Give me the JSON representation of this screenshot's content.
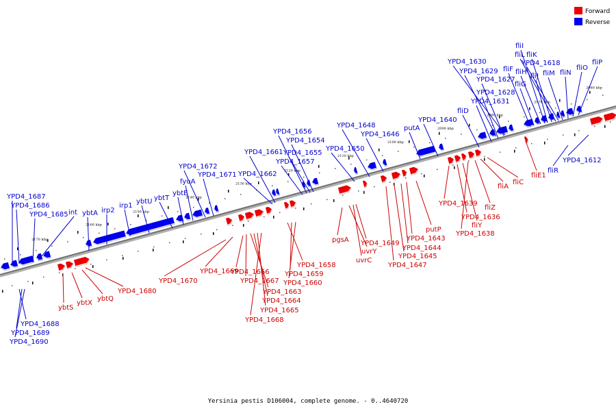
{
  "legend": [
    {
      "label": "Forward",
      "color": "#ee0000"
    },
    {
      "label": "Reverse",
      "color": "#0000ee"
    }
  ],
  "caption": "Yersinia pestis D106004, complete genome. - 0..4640720",
  "colors": {
    "forward": "#ee0000",
    "reverse": "#0000ee",
    "backbone": "#808080"
  },
  "ticks": [
    "2060 kbp",
    "2070 kbp",
    "2080 kbp",
    "2090 kbp",
    "2100 kbp",
    "2110 kbp",
    "2120 kbp",
    "2130 kbp",
    "2140 kbp",
    "2150 kbp",
    "2160 kbp",
    "2170 kbp"
  ],
  "reverse_genes": [
    {
      "name": "YPD4_1687"
    },
    {
      "name": "YPD4_1686"
    },
    {
      "name": "YPD4_1685"
    },
    {
      "name": "int"
    },
    {
      "name": "ybtA"
    },
    {
      "name": "irp2"
    },
    {
      "name": "irp1"
    },
    {
      "name": "ybtU"
    },
    {
      "name": "ybtT"
    },
    {
      "name": "ybtE"
    },
    {
      "name": "fyuA"
    },
    {
      "name": "YPD4_1672"
    },
    {
      "name": "YPD4_1671"
    },
    {
      "name": "YPD4_1662"
    },
    {
      "name": "YPD4_1661"
    },
    {
      "name": "YPD4_1657"
    },
    {
      "name": "YPD4_1656"
    },
    {
      "name": "YPD4_1655"
    },
    {
      "name": "YPD4_1654"
    },
    {
      "name": "YPD4_1650"
    },
    {
      "name": "YPD4_1648"
    },
    {
      "name": "YPD4_1646"
    },
    {
      "name": "putA"
    },
    {
      "name": "YPD4_1640"
    },
    {
      "name": "fliD"
    },
    {
      "name": "YPD4_1631"
    },
    {
      "name": "YPD4_1628"
    },
    {
      "name": "YPD4_1627"
    },
    {
      "name": "YPD4_1629"
    },
    {
      "name": "YPD4_1630"
    },
    {
      "name": "fliF"
    },
    {
      "name": "fliG"
    },
    {
      "name": "fliH"
    },
    {
      "name": "fliI"
    },
    {
      "name": "fliJ"
    },
    {
      "name": "fliK"
    },
    {
      "name": "fliL"
    },
    {
      "name": "YPD4_1618"
    },
    {
      "name": "fliM"
    },
    {
      "name": "fliN"
    },
    {
      "name": "fliO"
    },
    {
      "name": "fliP"
    },
    {
      "name": "fliR"
    },
    {
      "name": "YPD4_1612"
    },
    {
      "name": "YPD4_1688"
    },
    {
      "name": "YPD4_1689"
    },
    {
      "name": "YPD4_1690"
    }
  ],
  "forward_genes": [
    {
      "name": "ybtS"
    },
    {
      "name": "ybtX"
    },
    {
      "name": "ybtQ"
    },
    {
      "name": "YPD4_1680"
    },
    {
      "name": "YPD4_1670"
    },
    {
      "name": "YPD4_1669"
    },
    {
      "name": "YPD4_1666"
    },
    {
      "name": "YPD4_1667"
    },
    {
      "name": "YPD4_1663"
    },
    {
      "name": "YPD4_1664"
    },
    {
      "name": "YPD4_1665"
    },
    {
      "name": "YPD4_1668"
    },
    {
      "name": "YPD4_1658"
    },
    {
      "name": "YPD4_1659"
    },
    {
      "name": "YPD4_1660"
    },
    {
      "name": "pgsA"
    },
    {
      "name": "uvrY"
    },
    {
      "name": "uvrC"
    },
    {
      "name": "YPD4_1649"
    },
    {
      "name": "YPD4_1647"
    },
    {
      "name": "YPD4_1645"
    },
    {
      "name": "YPD4_1644"
    },
    {
      "name": "YPD4_1643"
    },
    {
      "name": "putP"
    },
    {
      "name": "YPD4_1639"
    },
    {
      "name": "YPD4_1636"
    },
    {
      "name": "fliY"
    },
    {
      "name": "YPD4_1638"
    },
    {
      "name": "fliZ"
    },
    {
      "name": "fliA"
    },
    {
      "name": "fliC"
    },
    {
      "name": "fliE1"
    }
  ]
}
